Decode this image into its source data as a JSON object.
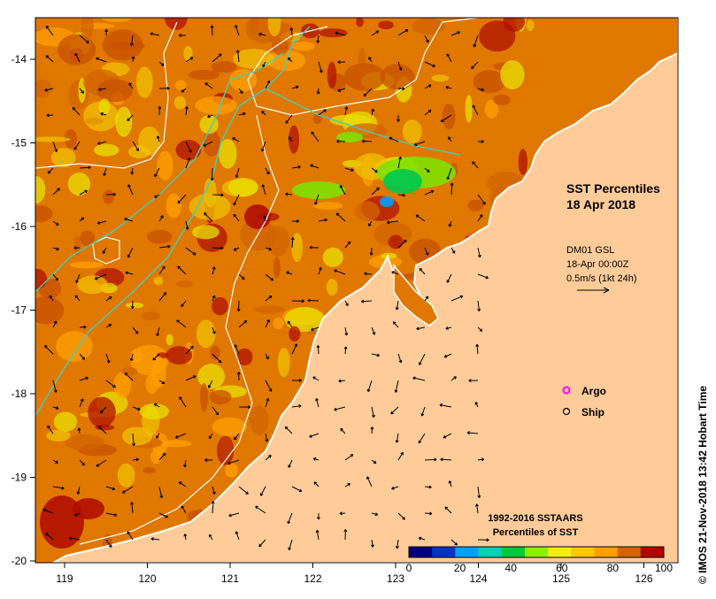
{
  "title": {
    "line1": "SST Percentiles",
    "line2": "18 Apr 2018"
  },
  "current_info": {
    "line1": "DM01 GSL",
    "line2": "18-Apr 00:00Z",
    "line3": "0.5m/s (1kt 24h)"
  },
  "legend": {
    "argo": "Argo",
    "ship": "Ship"
  },
  "colorbar": {
    "title1": "1992-2016 SSTAARS",
    "title2": "Percentiles of SST",
    "ticks": [
      "0",
      "20",
      "40",
      "60",
      "80",
      "100"
    ],
    "colors": [
      "#00007f",
      "#0032c8",
      "#00a0ff",
      "#00d2b4",
      "#00c83c",
      "#8cf000",
      "#f0f000",
      "#ffc800",
      "#ffa000",
      "#d26400",
      "#b40000"
    ]
  },
  "x_ticks": [
    "119",
    "120",
    "121",
    "122",
    "123",
    "124",
    "125",
    "126"
  ],
  "y_ticks": [
    "-14",
    "-15",
    "-16",
    "-17",
    "-18",
    "-19",
    "-20"
  ],
  "credit": "© IMOS 21-Nov-2018 13:42 Hobart Time",
  "colors": {
    "land": "#ffcc99",
    "sea_base": "#e07800",
    "sea_warm": "#c85000",
    "sea_hot": "#b01000",
    "argo": "#ff00ff"
  }
}
